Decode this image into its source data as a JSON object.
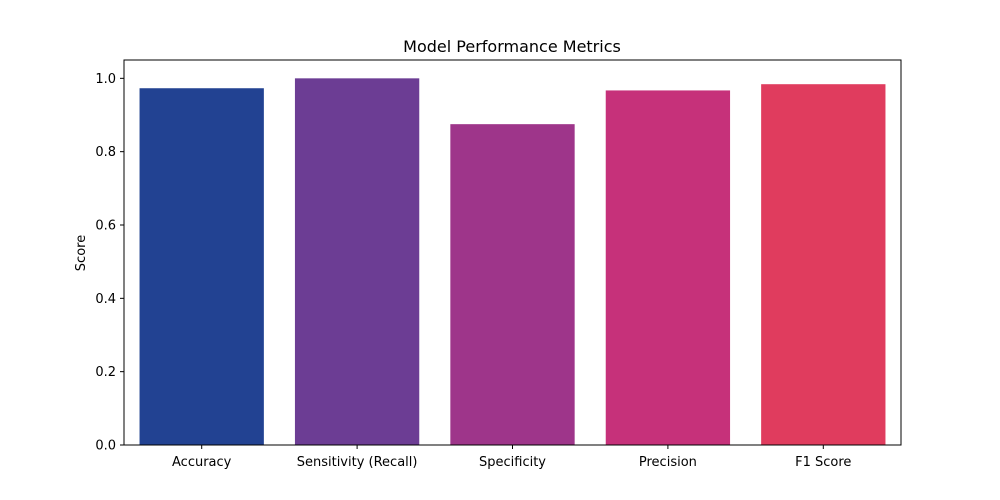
{
  "chart_data": {
    "type": "bar",
    "title": "Model Performance Metrics",
    "xlabel": "",
    "ylabel": "Score",
    "categories": [
      "Accuracy",
      "Sensitivity (Recall)",
      "Specificity",
      "Precision",
      "F1 Score"
    ],
    "values": [
      0.973,
      1.0,
      0.875,
      0.967,
      0.984
    ],
    "colors": [
      "#224292",
      "#6c3d94",
      "#9e358a",
      "#c6317a",
      "#e03c5e"
    ],
    "ylim": [
      0,
      1.05
    ],
    "yticks": [
      0.0,
      0.2,
      0.4,
      0.6,
      0.8,
      1.0
    ],
    "ytick_labels": [
      "0.0",
      "0.2",
      "0.4",
      "0.6",
      "0.8",
      "1.0"
    ],
    "grid": false,
    "legend": "none"
  }
}
